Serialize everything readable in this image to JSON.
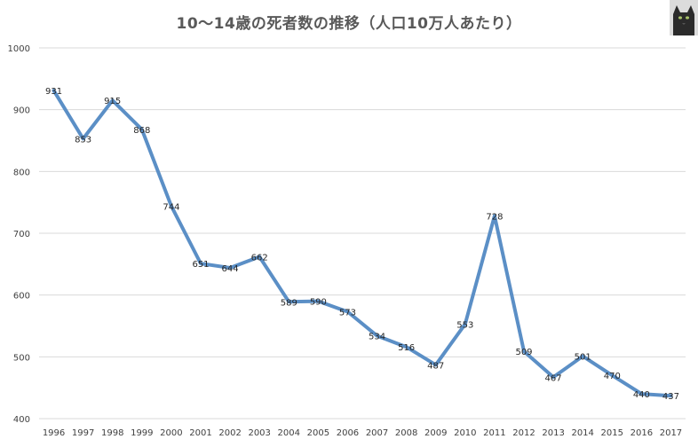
{
  "chart_data": {
    "type": "line",
    "title": "10～14歳の死者数の推移（人口10万人あたり）",
    "categories": [
      "1996",
      "1997",
      "1998",
      "1999",
      "2000",
      "2001",
      "2002",
      "2003",
      "2004",
      "2005",
      "2006",
      "2007",
      "2008",
      "2009",
      "2010",
      "2011",
      "2012",
      "2013",
      "2014",
      "2015",
      "2016",
      "2017"
    ],
    "values": [
      931,
      853,
      915,
      868,
      744,
      651,
      644,
      662,
      589,
      590,
      573,
      534,
      516,
      487,
      553,
      728,
      509,
      467,
      501,
      470,
      440,
      437
    ],
    "data_labels": [
      "931",
      "853",
      "915",
      "868",
      "744",
      "651",
      "644",
      "662",
      "589",
      "590",
      "573",
      "534",
      "516",
      "487",
      "553",
      "728",
      "509",
      "467",
      "501",
      "470",
      "440",
      "437"
    ],
    "ylim": [
      400,
      1000
    ],
    "yticks": [
      "400",
      "500",
      "600",
      "700",
      "800",
      "900",
      "1000"
    ],
    "grid": true,
    "xlabel": "",
    "ylabel": "",
    "line_color": "#5b8fc6"
  },
  "icons": {
    "corner_image": "cat-photo-icon"
  }
}
